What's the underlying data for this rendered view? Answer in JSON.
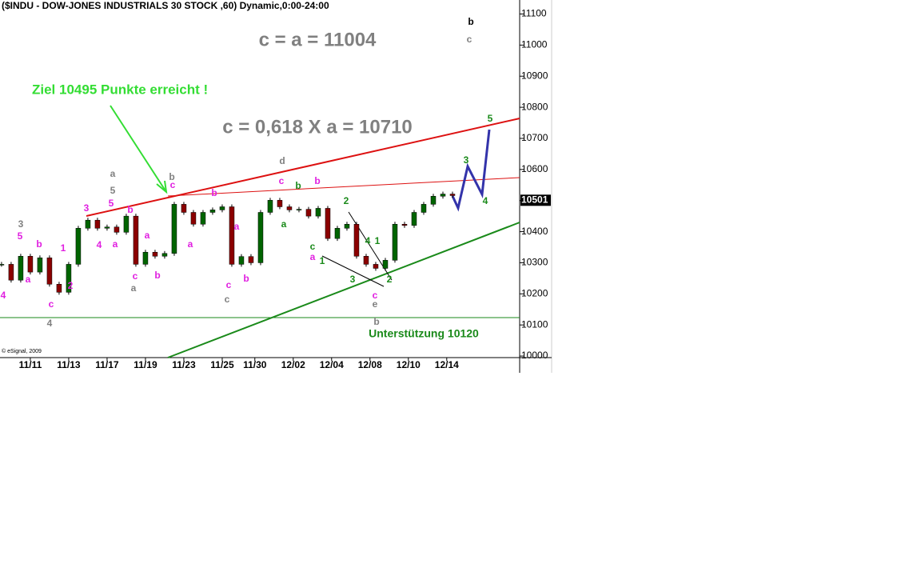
{
  "chart_data": {
    "type": "candlestick",
    "title": "($INDU - DOW-JONES INDUSTRIALS 30 STOCK ,60) Dynamic,0:00-24:00",
    "x": [
      -1.5,
      -1,
      -0.5,
      0,
      0.5,
      1,
      1.5,
      2,
      2.5,
      3,
      3.5,
      4,
      4.5,
      5,
      5.5,
      6,
      6.5,
      7,
      7.5,
      8,
      8.5,
      9,
      9.5,
      10,
      10.5,
      11,
      11.5,
      12,
      12.5,
      13,
      13.5,
      14,
      14.5,
      15,
      15.5,
      16,
      16.5,
      17,
      17.5,
      18,
      18.5,
      19,
      19.5,
      20,
      20.5,
      21,
      21.5,
      22
    ],
    "values": [
      10295,
      10244,
      10321,
      10270,
      10316,
      10231,
      10205,
      10295,
      10411,
      10437,
      10411,
      10415,
      10398,
      10450,
      10295,
      10334,
      10321,
      10330,
      10488,
      10462,
      10424,
      10462,
      10470,
      10480,
      10295,
      10320,
      10300,
      10462,
      10501,
      10480,
      10470,
      10472,
      10450,
      10475,
      10378,
      10411,
      10424,
      10321,
      10295,
      10282,
      10308,
      10424,
      10420,
      10462,
      10488,
      10514,
      10521,
      10516
    ],
    "up_color": "#006400",
    "down_color": "#8b0000",
    "xlim": [
      -1.58,
      25.5
    ],
    "ylim": [
      9995,
      11145
    ],
    "xticks": [
      {
        "value": 0,
        "label": "11/11"
      },
      {
        "value": 2,
        "label": "11/13"
      },
      {
        "value": 4,
        "label": "11/17"
      },
      {
        "value": 6,
        "label": "11/19"
      },
      {
        "value": 8,
        "label": "11/23"
      },
      {
        "value": 10,
        "label": "11/25"
      },
      {
        "value": 11.7,
        "label": "11/30"
      },
      {
        "value": 13.7,
        "label": "12/02"
      },
      {
        "value": 15.7,
        "label": "12/04"
      },
      {
        "value": 17.7,
        "label": "12/08"
      },
      {
        "value": 19.7,
        "label": "12/10"
      },
      {
        "value": 21.7,
        "label": "12/14"
      }
    ],
    "yticks": [
      10000,
      10100,
      10200,
      10300,
      10400,
      10500,
      10600,
      10700,
      10800,
      10900,
      11000,
      11100
    ],
    "last_value": 10501,
    "headline_1": "c = a = 11004",
    "headline_2": "c = 0,618 X a = 10710",
    "target_note": "Ziel 10495 Punkte erreicht !",
    "support_note": "Unterstützung 10120",
    "copyright": "© eSignal, 2009",
    "annotations": [
      {
        "text": "3",
        "color": "#e020e0"
      },
      {
        "text": "5",
        "color": "#e020e0"
      },
      {
        "text": "4",
        "color": "#e020e0"
      },
      {
        "text": "b",
        "color": "#e020e0"
      },
      {
        "text": "a",
        "color": "#e020e0"
      },
      {
        "text": "a",
        "color": "#e020e0"
      },
      {
        "text": "c",
        "color": "#e020e0"
      },
      {
        "text": "b",
        "color": "#e020e0"
      },
      {
        "text": "c",
        "color": "#e020e0"
      },
      {
        "text": "a",
        "color": "#e020e0"
      },
      {
        "text": "b",
        "color": "#e020e0"
      },
      {
        "text": "a",
        "color": "#e020e0"
      },
      {
        "text": "c",
        "color": "#e020e0"
      },
      {
        "text": "b",
        "color": "#e020e0"
      },
      {
        "text": "c",
        "color": "#e020e0"
      },
      {
        "text": "b",
        "color": "#e020e0"
      },
      {
        "text": "a",
        "color": "#e020e0"
      },
      {
        "text": "c",
        "color": "#e020e0"
      },
      {
        "text": "5",
        "color": "#e020e0"
      },
      {
        "text": "b",
        "color": "#e020e0"
      },
      {
        "text": "a",
        "color": "#e020e0"
      },
      {
        "text": "c",
        "color": "#e020e0"
      },
      {
        "text": "1",
        "color": "#e020e0"
      },
      {
        "text": "2",
        "color": "#e020e0"
      },
      {
        "text": "4",
        "color": "#e020e0"
      },
      {
        "text": "3",
        "color": "#808080"
      },
      {
        "text": "4",
        "color": "#808080"
      },
      {
        "text": "a",
        "color": "#808080"
      },
      {
        "text": "5",
        "color": "#808080"
      },
      {
        "text": "a",
        "color": "#808080"
      },
      {
        "text": "b",
        "color": "#808080"
      },
      {
        "text": "c",
        "color": "#808080"
      },
      {
        "text": "d",
        "color": "#808080"
      },
      {
        "text": "e",
        "color": "#808080"
      },
      {
        "text": "b",
        "color": "#808080"
      },
      {
        "text": "b",
        "color": "#000000"
      },
      {
        "text": "c",
        "color": "#808080"
      },
      {
        "text": "b",
        "color": "#1a8a1a"
      },
      {
        "text": "a",
        "color": "#1a8a1a"
      },
      {
        "text": "c",
        "color": "#1a8a1a"
      },
      {
        "text": "1",
        "color": "#1a8a1a"
      },
      {
        "text": "2",
        "color": "#1a8a1a"
      },
      {
        "text": "4",
        "color": "#1a8a1a"
      },
      {
        "text": "1",
        "color": "#1a8a1a"
      },
      {
        "text": "3",
        "color": "#1a8a1a"
      },
      {
        "text": "2",
        "color": "#1a8a1a"
      },
      {
        "text": "5",
        "color": "#1a8a1a"
      },
      {
        "text": "3",
        "color": "#1a8a1a"
      },
      {
        "text": "4",
        "color": "#1a8a1a"
      }
    ]
  }
}
